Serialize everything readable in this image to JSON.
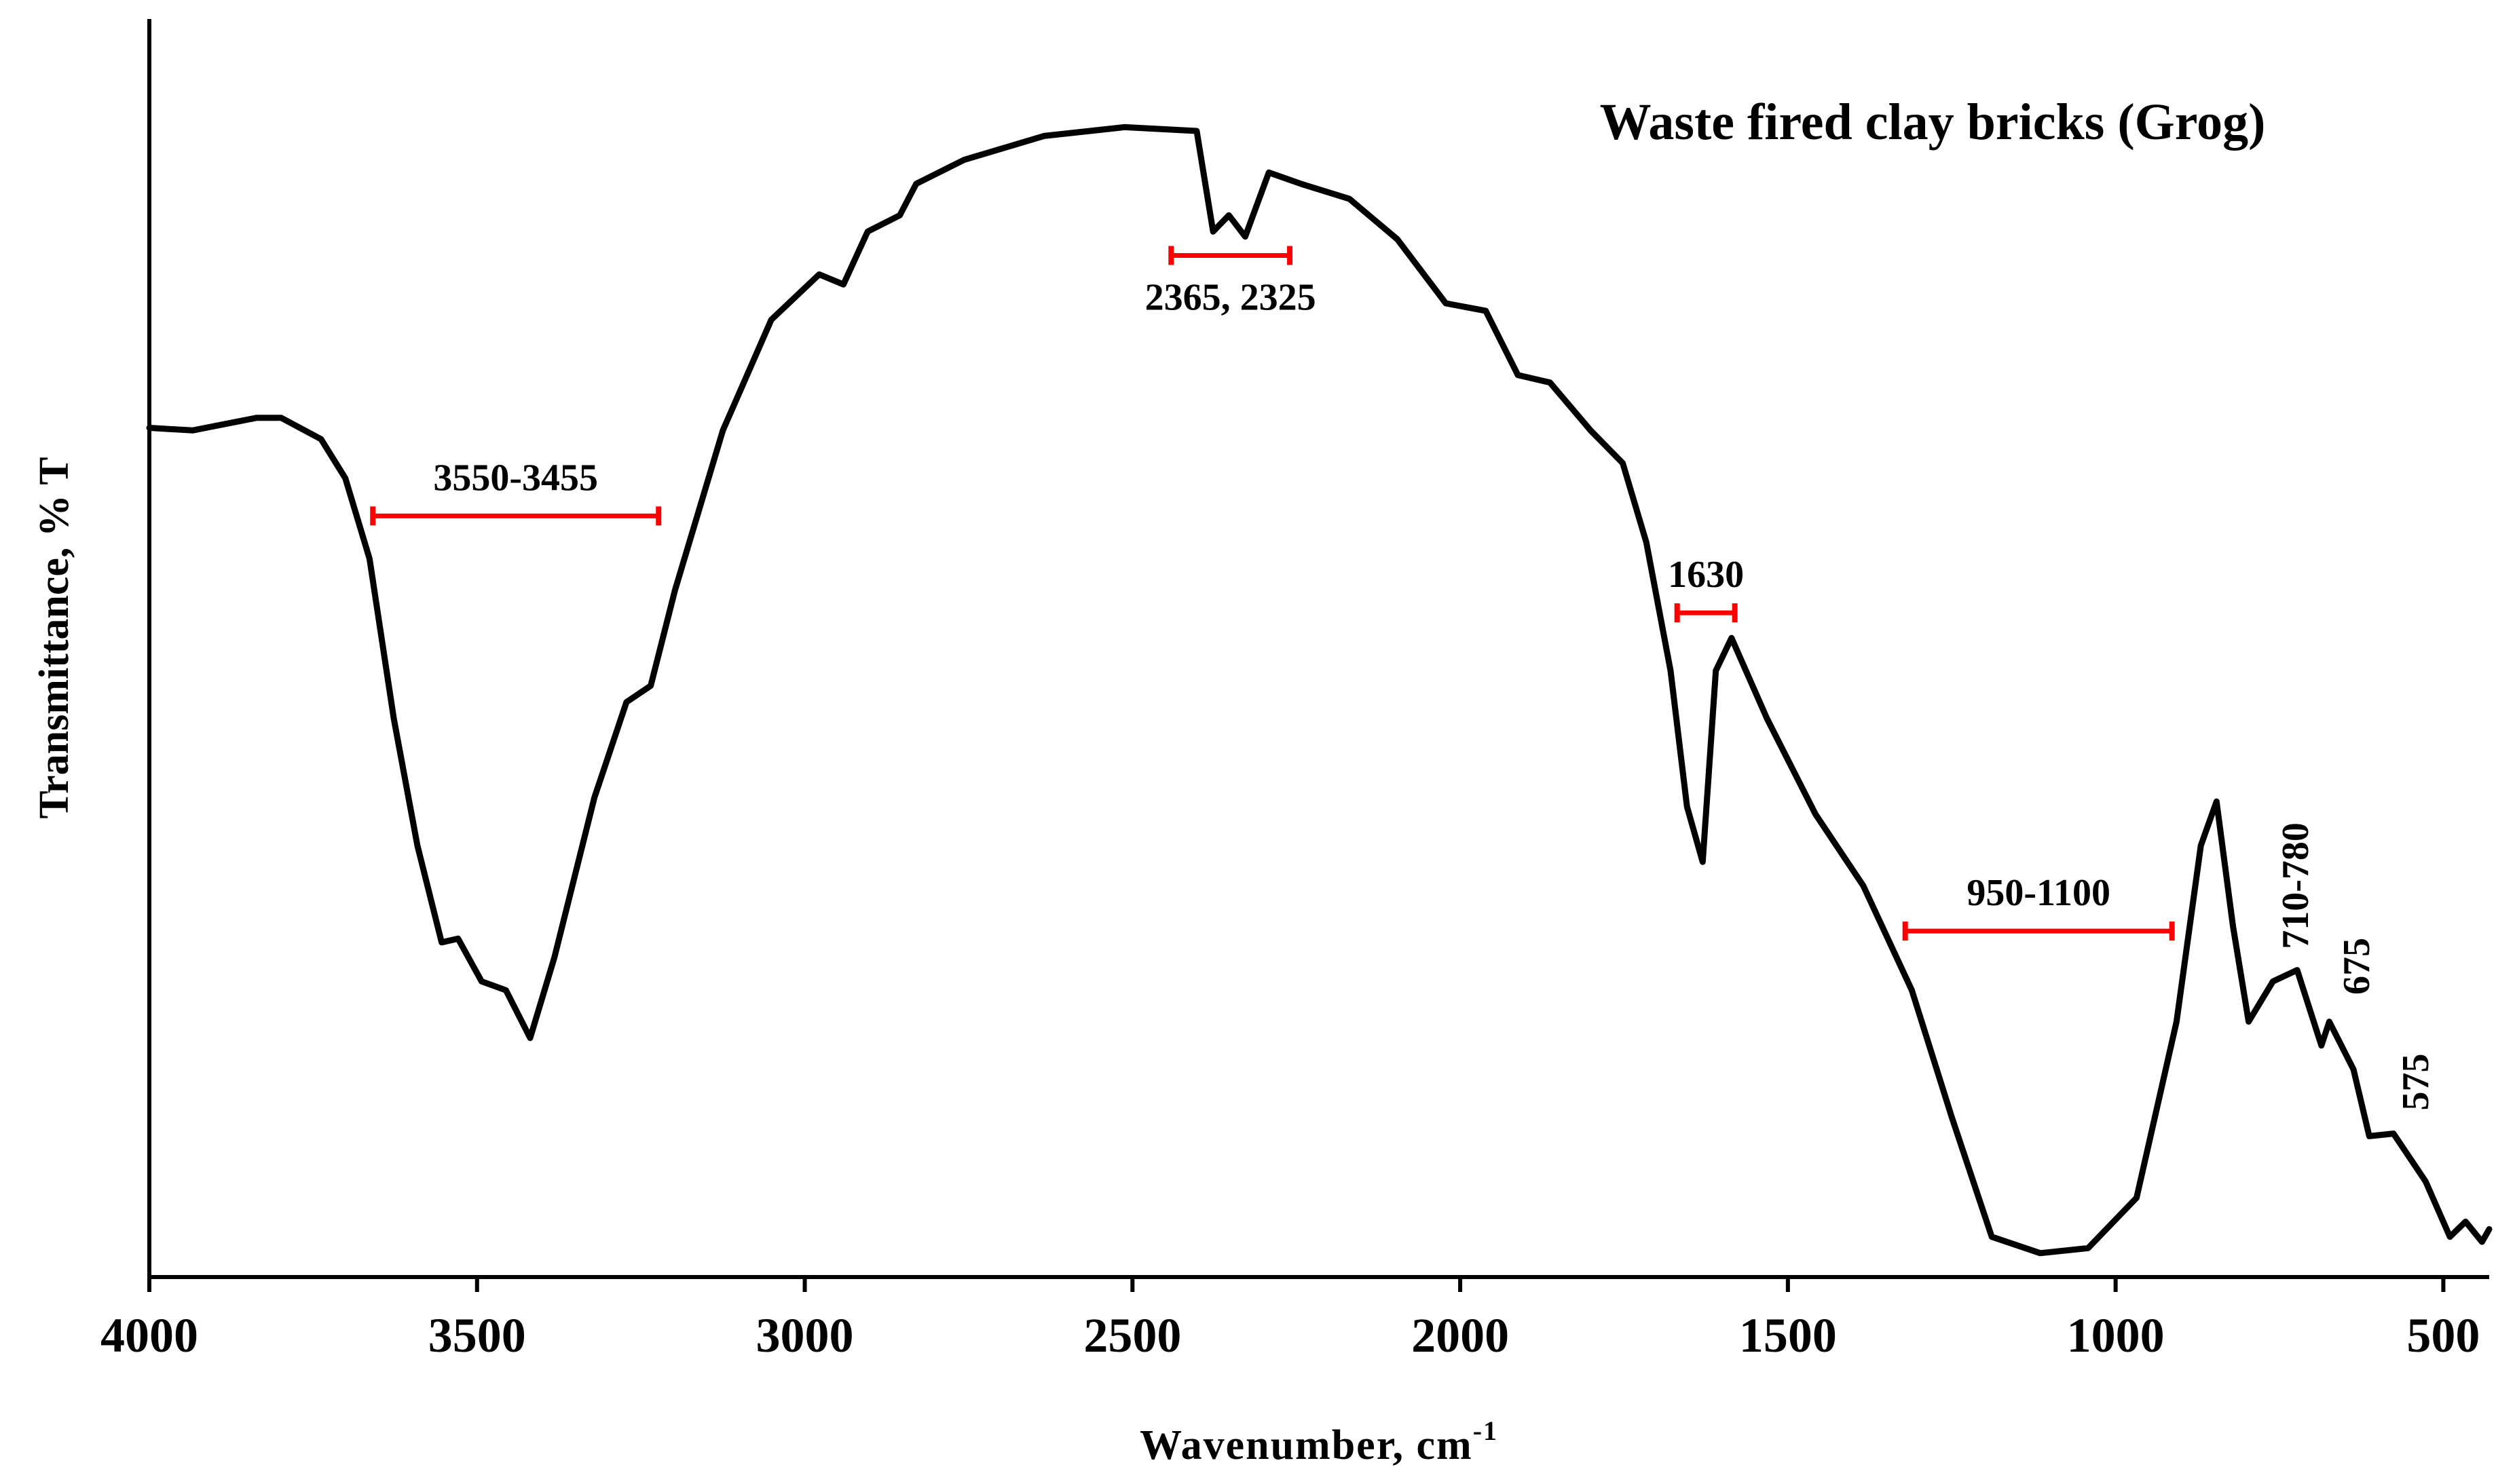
{
  "chart_data": {
    "type": "line",
    "title": "Waste fired clay bricks (Grog)",
    "x_label": "Wavenumber, cm",
    "x_label_superscript": "-1",
    "y_label": "Transmittance, % T",
    "xlim": [
      4000,
      430
    ],
    "ylim": [
      0,
      100
    ],
    "xticks": [
      4000,
      3500,
      3000,
      2500,
      2000,
      1500,
      1000,
      500
    ],
    "color": "#000000",
    "x": [
      4000,
      3934,
      3836,
      3799,
      3738,
      3701,
      3664,
      3627,
      3591,
      3554,
      3529,
      3493,
      3456,
      3419,
      3382,
      3321,
      3272,
      3235,
      3198,
      3125,
      3051,
      2978,
      2941,
      2904,
      2855,
      2830,
      2757,
      2635,
      2512,
      2402,
      2377,
      2353,
      2328,
      2292,
      2243,
      2169,
      2096,
      2022,
      1961,
      1912,
      1863,
      1801,
      1752,
      1716,
      1679,
      1654,
      1630,
      1610,
      1586,
      1532,
      1458,
      1385,
      1311,
      1250,
      1189,
      1115,
      1042,
      968,
      907,
      870,
      846,
      821,
      797,
      760,
      723,
      686,
      674,
      637,
      613,
      576,
      527,
      490,
      466,
      441,
      430
    ],
    "values": [
      67.5,
      67.3,
      68.3,
      68.3,
      66.6,
      63.5,
      57.1,
      44.4,
      34.3,
      26.6,
      26.9,
      23.5,
      22.8,
      19.0,
      25.4,
      38.1,
      45.7,
      47.0,
      54.6,
      67.3,
      76.1,
      79.7,
      78.9,
      83.1,
      84.4,
      86.9,
      88.8,
      90.7,
      91.4,
      91.1,
      83.1,
      84.4,
      82.7,
      87.8,
      86.9,
      85.7,
      82.5,
      77.4,
      76.8,
      71.7,
      71.1,
      67.3,
      64.7,
      58.4,
      48.2,
      37.4,
      33.0,
      48.2,
      50.8,
      44.4,
      36.8,
      31.1,
      22.8,
      12.7,
      3.2,
      1.9,
      2.3,
      6.3,
      20.3,
      34.3,
      37.8,
      27.9,
      20.3,
      23.5,
      24.4,
      18.4,
      20.3,
      16.5,
      11.2,
      11.4,
      7.6,
      3.2,
      4.4,
      2.8,
      3.8
    ],
    "annotation_color": "#ff0000",
    "annotations": [
      {
        "text": "3550-3455",
        "x": [
          3659,
          3223
        ],
        "y": 60.5,
        "label": "above"
      },
      {
        "text": "2365, 2325",
        "x": [
          2441,
          2260
        ],
        "y": 81.2,
        "label": "below"
      },
      {
        "text": "1630",
        "x": [
          1669,
          1581
        ],
        "y": 52.8,
        "label": "above"
      },
      {
        "text": "950-1100",
        "x": [
          1321,
          914
        ],
        "y": 27.5,
        "label": "above"
      }
    ],
    "rotated_labels": [
      {
        "text": "710-780",
        "x": 727,
        "y": 31.1
      },
      {
        "text": "675",
        "x": 634,
        "y": 24.7
      },
      {
        "text": "575",
        "x": 544,
        "y": 15.5
      }
    ]
  }
}
